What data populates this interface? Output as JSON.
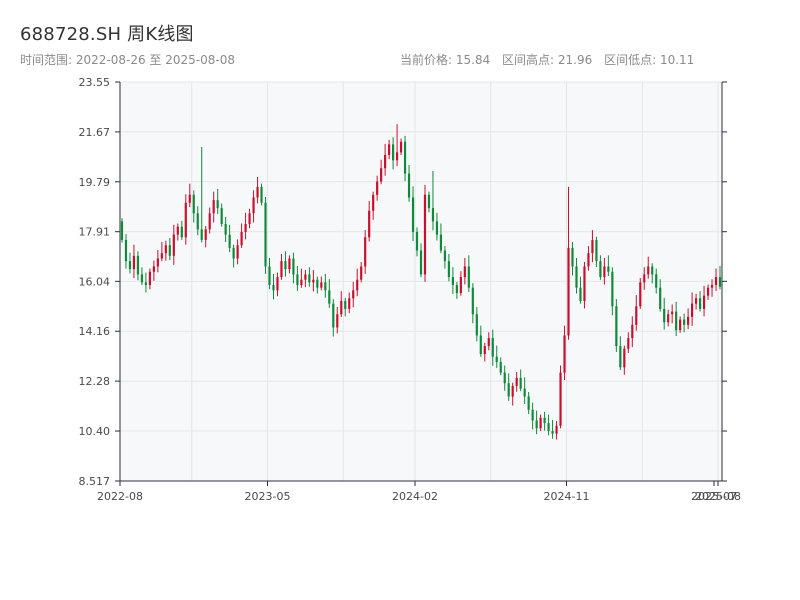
{
  "header": {
    "title": "688728.SH 周K线图",
    "range_label": "时间范围: 2022-08-26 至 2025-08-08",
    "current_price": "当前价格: 15.84",
    "high_label": "区间高点: 21.96",
    "low_label": "区间低点: 10.11"
  },
  "colors": {
    "up": "#c8102e",
    "down": "#0f8a3a",
    "plot_bg": "#f7f8fa",
    "grid": "#e3e6ea",
    "axis": "#2b2f38"
  },
  "chart_data": {
    "type": "candlestick",
    "title": "688728.SH 周K线图",
    "y_ticks": [
      "8.517",
      "10.40",
      "12.28",
      "14.16",
      "16.04",
      "17.91",
      "19.79",
      "21.67",
      "23.55"
    ],
    "ylim": [
      8.517,
      23.55
    ],
    "x_ticks": [
      {
        "label": "2022-08",
        "week": 0
      },
      {
        "label": "2023-05",
        "week": 37
      },
      {
        "label": "2024-02",
        "week": 74
      },
      {
        "label": "2024-11",
        "week": 112
      },
      {
        "label": "2025-07",
        "week": 149
      },
      {
        "label": "2025-08",
        "week": 150
      }
    ],
    "grid": true,
    "weeks": 151,
    "closes": [
      17.6,
      16.8,
      16.5,
      17.0,
      16.3,
      16.0,
      15.9,
      16.4,
      16.6,
      16.9,
      17.1,
      17.4,
      17.0,
      17.8,
      18.1,
      17.7,
      19.0,
      19.3,
      18.6,
      18.0,
      17.6,
      18.0,
      18.6,
      19.1,
      18.8,
      18.2,
      17.8,
      17.3,
      16.9,
      17.4,
      17.9,
      18.2,
      18.6,
      19.2,
      19.6,
      19.0,
      16.6,
      15.9,
      15.7,
      16.2,
      16.8,
      16.5,
      16.9,
      16.3,
      15.9,
      16.1,
      16.3,
      16.0,
      16.1,
      15.8,
      16.0,
      15.7,
      15.2,
      14.3,
      14.8,
      15.3,
      15.0,
      15.4,
      15.7,
      16.1,
      16.6,
      17.7,
      18.7,
      19.3,
      19.8,
      20.3,
      20.8,
      21.2,
      20.6,
      20.9,
      21.3,
      20.1,
      19.2,
      17.9,
      17.2,
      16.3,
      19.3,
      18.8,
      18.3,
      17.8,
      17.2,
      16.8,
      16.2,
      15.9,
      15.6,
      16.2,
      16.6,
      15.8,
      14.8,
      14.0,
      13.3,
      13.6,
      13.9,
      13.2,
      13.0,
      12.6,
      12.2,
      11.7,
      12.1,
      12.4,
      12.0,
      11.7,
      11.2,
      10.8,
      10.5,
      10.9,
      10.7,
      10.4,
      10.3,
      10.6,
      12.6,
      14.0,
      17.3,
      16.6,
      15.8,
      15.3,
      16.6,
      17.1,
      17.6,
      16.8,
      16.2,
      16.6,
      16.4,
      15.1,
      13.6,
      12.8,
      13.5,
      13.9,
      14.4,
      15.1,
      16.0,
      16.3,
      16.6,
      16.3,
      15.8,
      15.0,
      14.5,
      14.8,
      14.9,
      14.2,
      14.6,
      14.4,
      14.7,
      15.2,
      15.4,
      15.0,
      15.5,
      15.8,
      15.9,
      16.2,
      15.84
    ],
    "first_open": 18.3,
    "high": 21.96,
    "low": 10.11
  }
}
